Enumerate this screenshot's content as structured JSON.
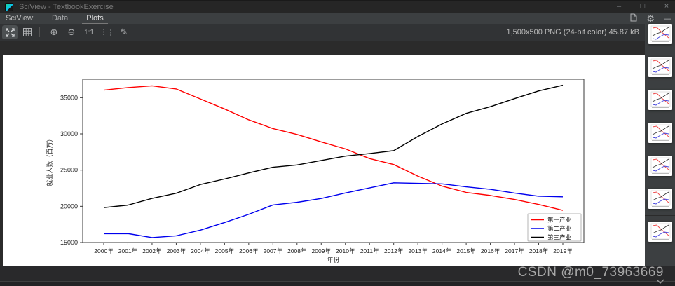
{
  "window": {
    "title": "SciView - TextbookExercise",
    "controls": {
      "minimize": "–",
      "maximize": "□",
      "close": "×"
    }
  },
  "menu": {
    "label": "SciView:",
    "tabs": [
      {
        "label": "Data",
        "active": false
      },
      {
        "label": "Plots",
        "active": true
      }
    ]
  },
  "panel_controls": {
    "gear": "⚙",
    "hide": "—"
  },
  "toolbar": {
    "icons": [
      {
        "name": "fit-to-window",
        "selected": true
      },
      {
        "name": "grid-view",
        "selected": false
      },
      {
        "name": "zoom-in",
        "glyph": "⊕"
      },
      {
        "name": "zoom-out",
        "glyph": "⊖"
      },
      {
        "name": "actual-size",
        "glyph": "1:1"
      },
      {
        "name": "selection-box",
        "disabled": true
      },
      {
        "name": "eyedropper",
        "glyph": "✎"
      }
    ],
    "info": "1,500x500 PNG (24-bit color) 45.87 kB"
  },
  "sidebar": {
    "thumbnails": [
      {
        "name": "plot-thumbnail-1"
      },
      {
        "name": "plot-thumbnail-2"
      },
      {
        "name": "plot-thumbnail-3"
      },
      {
        "name": "plot-thumbnail-4"
      },
      {
        "name": "plot-thumbnail-5"
      },
      {
        "name": "plot-thumbnail-6"
      },
      {
        "name": "plot-thumbnail-7"
      }
    ],
    "separator_after": 6
  },
  "watermark": "CSDN @m0_73963669",
  "chart_data": {
    "type": "line",
    "title": "",
    "xlabel": "年份",
    "ylabel": "就业人数（百万）",
    "x": [
      "2000年",
      "2001年",
      "2002年",
      "2003年",
      "2004年",
      "2005年",
      "2006年",
      "2007年",
      "2008年",
      "2009年",
      "2010年",
      "2011年",
      "2012年",
      "2013年",
      "2014年",
      "2015年",
      "2016年",
      "2017年",
      "2018年",
      "2019年"
    ],
    "series": [
      {
        "name": "第一产业",
        "color": "#ff0000",
        "values": [
          36043,
          36399,
          36640,
          36204,
          34830,
          33442,
          31941,
          30731,
          29923,
          28890,
          27931,
          26594,
          25773,
          24171,
          22790,
          21919,
          21496,
          20944,
          20258,
          19445
        ]
      },
      {
        "name": "第二产业",
        "color": "#0000ee",
        "values": [
          16219,
          16234,
          15682,
          15927,
          16709,
          17766,
          18894,
          20186,
          20553,
          21080,
          21842,
          22544,
          23241,
          23170,
          23099,
          22693,
          22350,
          21824,
          21390,
          21305
        ]
      },
      {
        "name": "第三产业",
        "color": "#000000",
        "values": [
          19823,
          20165,
          21090,
          21809,
          23011,
          23771,
          24614,
          25399,
          25717,
          26332,
          26938,
          27282,
          27690,
          29636,
          31364,
          32839,
          33757,
          34872,
          35938,
          36721
        ]
      }
    ],
    "ylim": [
      15000,
      37550
    ],
    "yticks": [
      15000,
      20000,
      25000,
      30000,
      35000
    ],
    "legend_position": "lower right",
    "grid": false
  }
}
